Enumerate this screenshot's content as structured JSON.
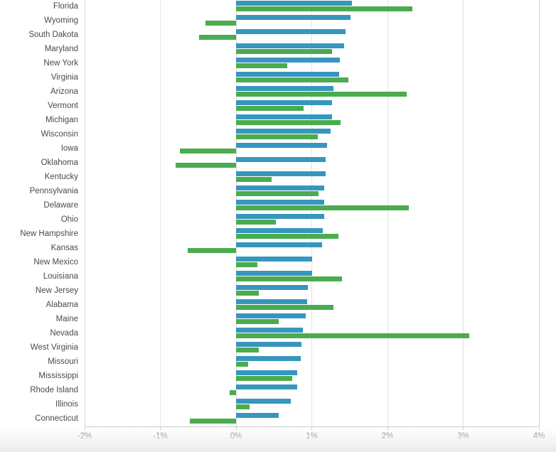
{
  "chart_data": {
    "type": "bar",
    "orientation": "horizontal",
    "title": "",
    "xlabel": "",
    "ylabel": "",
    "xlim": [
      -2,
      4
    ],
    "grid": true,
    "legend_position": "none",
    "x_tick_values": [
      -2,
      -1,
      0,
      1,
      2,
      3,
      4
    ],
    "x_tick_labels": [
      "-2%",
      "-1%",
      "0%",
      "1%",
      "2%",
      "3%",
      "4%"
    ],
    "categories": [
      "Florida",
      "Wyoming",
      "South Dakota",
      "Maryland",
      "New York",
      "Virginia",
      "Arizona",
      "Vermont",
      "Michigan",
      "Wisconsin",
      "Iowa",
      "Oklahoma",
      "Kentucky",
      "Pennsylvania",
      "Delaware",
      "Ohio",
      "New Hampshire",
      "Kansas",
      "New Mexico",
      "Louisiana",
      "New Jersey",
      "Alabama",
      "Maine",
      "Nevada",
      "West Virginia",
      "Missouri",
      "Mississippi",
      "Rhode Island",
      "Illinois",
      "Connecticut"
    ],
    "series": [
      {
        "name": "series-blue",
        "color": "#3796BE",
        "values": [
          1.53,
          1.51,
          1.45,
          1.43,
          1.37,
          1.36,
          1.29,
          1.27,
          1.27,
          1.25,
          1.2,
          1.18,
          1.18,
          1.16,
          1.16,
          1.16,
          1.15,
          1.14,
          1.0,
          1.0,
          0.95,
          0.94,
          0.92,
          0.88,
          0.86,
          0.85,
          0.81,
          0.81,
          0.72,
          0.56
        ]
      },
      {
        "name": "series-green",
        "color": "#4BAB4F",
        "values": [
          2.33,
          -0.4,
          -0.49,
          1.27,
          0.68,
          1.48,
          2.25,
          0.89,
          1.38,
          1.08,
          -0.74,
          -0.8,
          0.47,
          1.09,
          2.28,
          0.53,
          1.35,
          -0.64,
          0.28,
          1.4,
          0.3,
          1.29,
          0.56,
          3.08,
          0.3,
          0.16,
          0.74,
          -0.08,
          0.18,
          -0.61
        ]
      }
    ]
  },
  "layout_colors": {
    "gridline": "#e2e2e2",
    "axis_line": "#cccccc",
    "label_text": "#4a4a4a",
    "tick_text": "#5a5a5a"
  }
}
